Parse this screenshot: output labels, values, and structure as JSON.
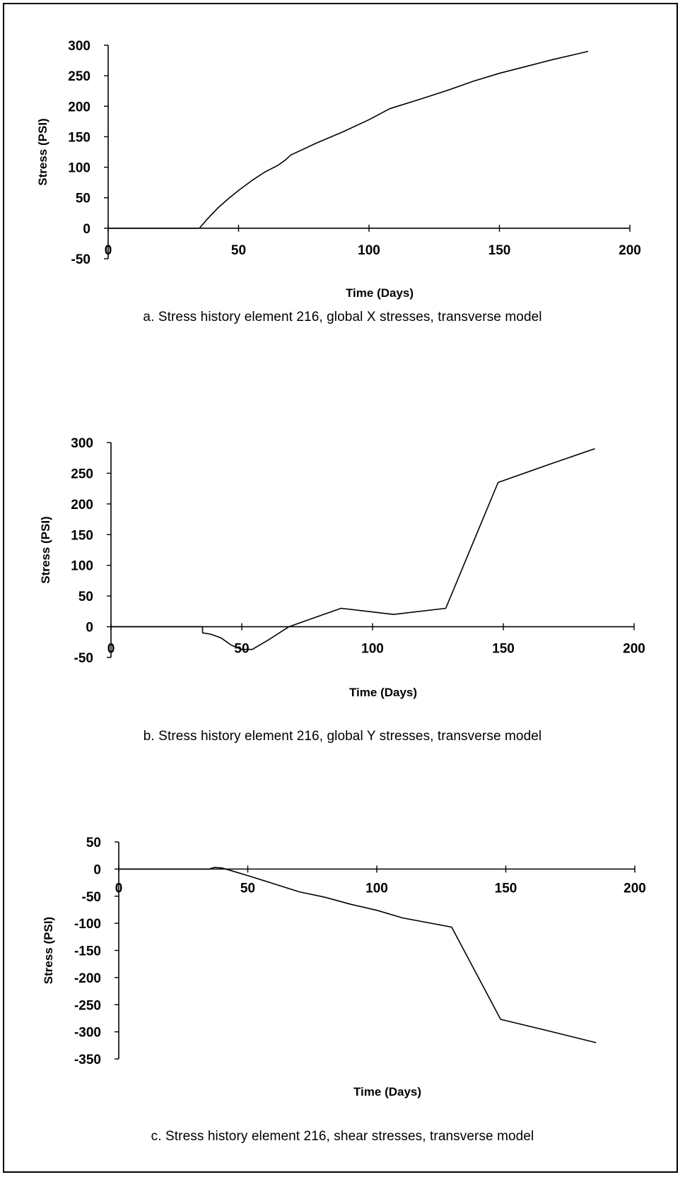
{
  "figure": {
    "captions": [
      "a.  Stress history element 216, global X stresses, transverse model",
      "b.  Stress history element 216, global Y stresses, transverse model",
      "c.  Stress history element 216, shear stresses, transverse model"
    ]
  },
  "chart_data": [
    {
      "type": "line",
      "xlabel": "Time (Days)",
      "ylabel": "Stress (PSI)",
      "xlim": [
        0,
        200
      ],
      "ylim": [
        -50,
        300
      ],
      "x_ticks": [
        0,
        50,
        100,
        150,
        200
      ],
      "y_ticks": [
        300,
        250,
        200,
        150,
        100,
        50,
        0,
        -50
      ],
      "x_tick_labels": [
        "0",
        "50",
        "100",
        "150",
        "200"
      ],
      "y_tick_labels": [
        "300",
        "250",
        "200",
        "150",
        "100",
        "50",
        "0",
        "-50"
      ],
      "series": [
        {
          "x": [
            0,
            35,
            38,
            42,
            46,
            50,
            55,
            60,
            65,
            68,
            70,
            80,
            90,
            100,
            108,
            120,
            130,
            140,
            150,
            160,
            170,
            180,
            184
          ],
          "y": [
            0,
            0,
            15,
            33,
            48,
            62,
            78,
            92,
            103,
            112,
            120,
            140,
            158,
            178,
            196,
            212,
            226,
            241,
            254,
            265,
            276,
            286,
            290
          ]
        }
      ],
      "grid": false
    },
    {
      "type": "line",
      "xlabel": "Time (Days)",
      "ylabel": "Stress (PSI)",
      "xlim": [
        0,
        200
      ],
      "ylim": [
        -50,
        300
      ],
      "x_ticks": [
        0,
        50,
        100,
        150,
        200
      ],
      "y_ticks": [
        300,
        250,
        200,
        150,
        100,
        50,
        0,
        -50
      ],
      "x_tick_labels": [
        "0",
        "50",
        "100",
        "150",
        "200"
      ],
      "y_tick_labels": [
        "300",
        "250",
        "200",
        "150",
        "100",
        "50",
        "0",
        "-50"
      ],
      "series": [
        {
          "x": [
            0,
            35,
            35,
            38,
            42,
            46,
            50,
            54,
            60,
            68,
            78,
            88,
            108,
            128,
            148,
            168,
            185
          ],
          "y": [
            0,
            0,
            -10,
            -12,
            -18,
            -30,
            -37,
            -37,
            -22,
            0,
            15,
            30,
            20,
            30,
            235,
            265,
            290
          ]
        }
      ],
      "grid": false
    },
    {
      "type": "line",
      "xlabel": "Time (Days)",
      "ylabel": "Stress (PSI)",
      "xlim": [
        0,
        200
      ],
      "ylim": [
        -350,
        50
      ],
      "x_ticks": [
        0,
        50,
        100,
        150,
        200
      ],
      "y_ticks": [
        50,
        0,
        -50,
        -100,
        -150,
        -200,
        -250,
        -300,
        -350
      ],
      "x_tick_labels": [
        "0",
        "50",
        "100",
        "150",
        "200"
      ],
      "y_tick_labels": [
        "50",
        "0",
        "-50",
        "-100",
        "-150",
        "-200",
        "-250",
        "-300",
        "-350"
      ],
      "series": [
        {
          "x": [
            0,
            35,
            37,
            40,
            45,
            50,
            60,
            70,
            80,
            90,
            100,
            110,
            129,
            148,
            168,
            185
          ],
          "y": [
            0,
            0,
            3,
            2,
            -5,
            -12,
            -27,
            -42,
            -52,
            -65,
            -76,
            -90,
            -107,
            -277,
            -300,
            -320
          ]
        }
      ],
      "grid": false
    }
  ]
}
